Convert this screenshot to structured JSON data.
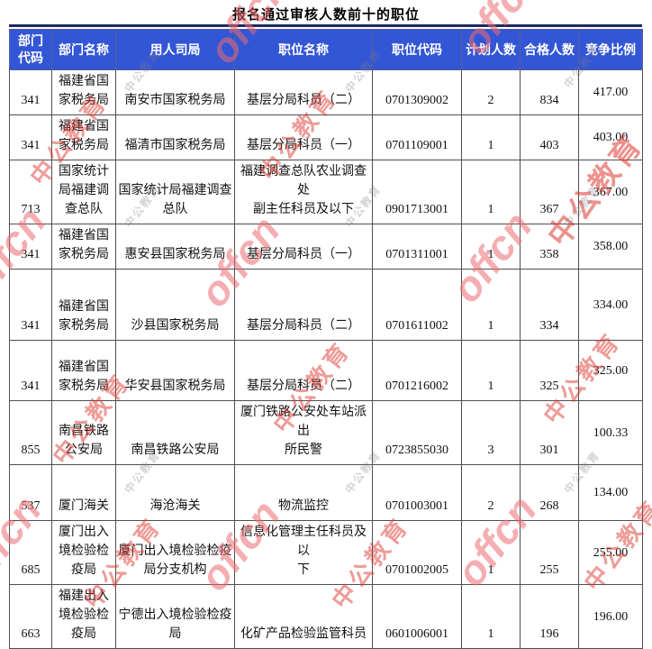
{
  "title": "报名通过审核人数前十的职位",
  "watermark": {
    "offcn": "offcn",
    "zhonggong": "中公教育"
  },
  "colors": {
    "header_bg": "#3356d6",
    "header_text": "#ffffff",
    "top_rule": "#1d2a66",
    "cell_border": "#4f4f4f",
    "watermark_red": "#dc3932",
    "watermark_pink": "#eb6c72"
  },
  "chart_data": {
    "type": "table",
    "title": "报名通过审核人数前十的职位",
    "columns": [
      "部门\n代码",
      "部门名称",
      "用人司局",
      "职位名称",
      "职位代码",
      "计划人数",
      "合格人数",
      "竞争比例"
    ],
    "rows": [
      [
        "341",
        "福建省国\n家税务局",
        "南安市国家税务局",
        "基层分局科员（二）",
        "0701309002",
        "2",
        "834",
        "417.00"
      ],
      [
        "341",
        "福建省国\n家税务局",
        "福清市国家税务局",
        "基层分局科员（一）",
        "0701109001",
        "1",
        "403",
        "403.00"
      ],
      [
        "713",
        "国家统计\n局福建调\n查总队",
        "国家统计局福建调查\n总队",
        "福建调查总队农业调查处\n副主任科员及以下",
        "0901713001",
        "1",
        "367",
        "367.00"
      ],
      [
        "341",
        "福建省国\n家税务局",
        "惠安县国家税务局",
        "基层分局科员（一）",
        "0701311001",
        "1",
        "358",
        "358.00"
      ],
      [
        "341",
        "福建省国\n家税务局",
        "沙县国家税务局",
        "基层分局科员（二）",
        "0701611002",
        "1",
        "334",
        "334.00"
      ],
      [
        "341",
        "福建省国\n家税务局",
        "华安县国家税务局",
        "基层分局科员（二）",
        "0701216002",
        "1",
        "325",
        "325.00"
      ],
      [
        "855",
        "南昌铁路\n公安局",
        "南昌铁路公安局",
        "厦门铁路公安处车站派出\n所民警",
        "0723855030",
        "3",
        "301",
        "100.33"
      ],
      [
        "537",
        "厦门海关",
        "海沧海关",
        "物流监控",
        "0701003001",
        "2",
        "268",
        "134.00"
      ],
      [
        "685",
        "厦门出入\n境检验检\n疫局",
        "厦门出入境检验检疫\n局分支机构",
        "信息化管理主任科员及以\n下",
        "0701002005",
        "1",
        "255",
        "255.00"
      ],
      [
        "663",
        "福建出入\n境检验检\n疫局",
        "宁德出入境检验检疫\n局",
        "化矿产品检验监管科员",
        "0601006001",
        "1",
        "196",
        "196.00"
      ]
    ]
  }
}
